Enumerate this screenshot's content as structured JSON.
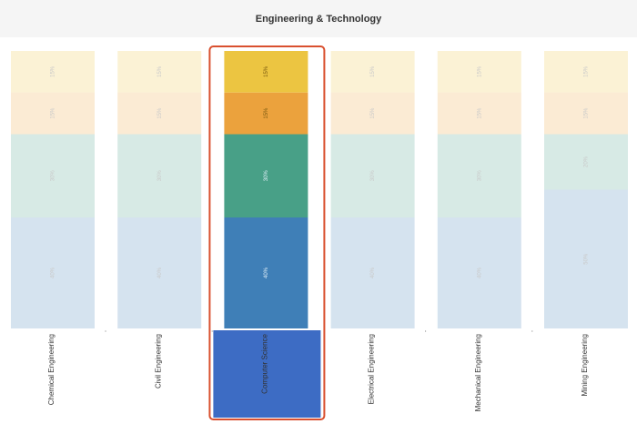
{
  "header": {
    "title": "Engineering & Technology"
  },
  "colors": {
    "segments": [
      "#ecc541",
      "#eba23d",
      "#48a087",
      "#3f7fb7"
    ],
    "selected_label_bg": "#3d6cc4",
    "highlight_border": "#d9502f"
  },
  "chart_data": {
    "type": "bar",
    "stacked": true,
    "normalized_percent": true,
    "title": "Engineering & Technology",
    "categories": [
      "Chemical Engineering",
      "Civil Engineering",
      "Computer Science",
      "Electrical Engineering",
      "Mechanical Engineering",
      "Mining Engineering"
    ],
    "selected": "Computer Science",
    "series": [
      {
        "values": [
          15,
          15,
          15,
          15,
          15,
          15
        ],
        "labels": [
          "15%",
          "15%",
          "15%",
          "15%",
          "15%",
          "15%"
        ]
      },
      {
        "values": [
          15,
          15,
          15,
          15,
          15,
          15
        ],
        "labels": [
          "15%",
          "15%",
          "15%",
          "15%",
          "15%",
          "15%"
        ]
      },
      {
        "values": [
          30,
          30,
          30,
          30,
          30,
          20
        ],
        "labels": [
          "30%",
          "30%",
          "30%",
          "30%",
          "30%",
          "20%"
        ]
      },
      {
        "values": [
          40,
          40,
          40,
          40,
          40,
          50
        ],
        "labels": [
          "40%",
          "40%",
          "40%",
          "40%",
          "40%",
          "50%"
        ]
      }
    ]
  }
}
